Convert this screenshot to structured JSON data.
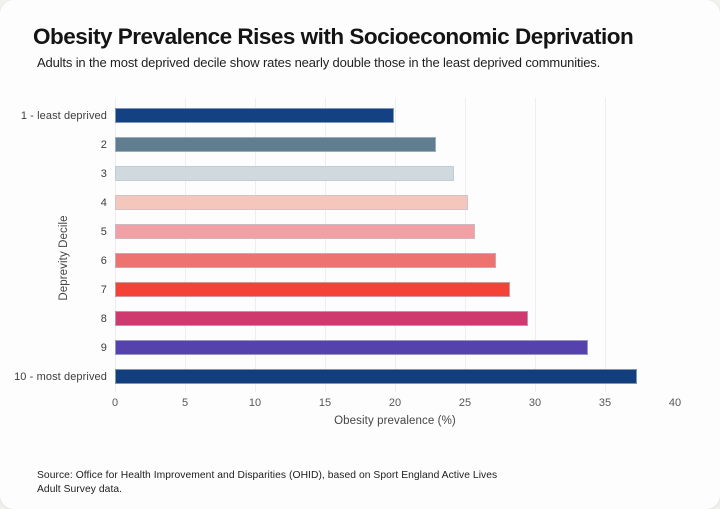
{
  "colors": {
    "page_background": "#f3f2ef",
    "card_background": "#fdfdfd",
    "gridline": "#eeeeee",
    "bar_border": "rgba(185,196,210,0.65)"
  },
  "chart_data": {
    "type": "bar",
    "orientation": "horizontal",
    "title": "Obesity Prevalence Rises with Socioeconomic Deprivation",
    "subtitle": "Adults in the most deprived decile show rates nearly double those in the least deprived communities.",
    "categories": [
      "1 - least deprived",
      "2",
      "3",
      "4",
      "5",
      "6",
      "7",
      "8",
      "9",
      "10 - most deprived"
    ],
    "values": [
      19.9,
      22.9,
      24.2,
      25.2,
      25.7,
      27.2,
      28.2,
      29.5,
      33.8,
      37.3
    ],
    "bar_colors": [
      "#144182",
      "#607e8f",
      "#d0d9de",
      "#f4c6bc",
      "#f1a1a5",
      "#ed7370",
      "#f44336",
      "#ce3a6e",
      "#5542ac",
      "#133e7d"
    ],
    "xlabel": "Obesity prevalence (%)",
    "ylabel": "Deprevity Decile",
    "xlim": [
      0,
      40
    ],
    "xticks": [
      0,
      5,
      10,
      15,
      20,
      25,
      30,
      35,
      40
    ],
    "gridline_ticks": [
      0,
      5,
      10,
      15,
      20,
      25,
      30,
      35
    ],
    "grid": true,
    "legend": false,
    "source": "Source: Office for Health Improvement and Disparities (OHID), based on Sport England Active Lives Adult Survey data."
  }
}
